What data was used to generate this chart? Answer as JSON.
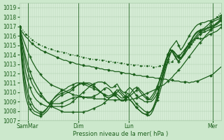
{
  "title": "",
  "xlabel": "Pression niveau de la mer( hPa )",
  "ylabel": "",
  "bg_color": "#cce8cc",
  "plot_bg_color": "#d8eed8",
  "grid_color": "#aaccaa",
  "grid_color_major": "#88aa88",
  "line_color": "#1a5e1a",
  "ylim": [
    1007,
    1019.5
  ],
  "xlim": [
    0,
    96
  ],
  "x_ticks_pos": [
    4,
    28,
    52,
    92
  ],
  "x_tick_labels": [
    "SamMar",
    "Dim",
    "Lun",
    "Mer"
  ],
  "vlines": [
    4,
    28,
    52,
    92
  ],
  "series": [
    {
      "style": "-",
      "marker": "D",
      "ms": 1.5,
      "lw": 0.9,
      "markevery": 6,
      "y": [
        1017.0,
        1016.5,
        1016.2,
        1015.9,
        1015.7,
        1015.4,
        1015.2,
        1015.0,
        1014.8,
        1014.7,
        1014.5,
        1014.4,
        1014.3,
        1014.2,
        1014.1,
        1014.0,
        1013.9,
        1013.8,
        1013.7,
        1013.6,
        1013.5,
        1013.4,
        1013.4,
        1013.3,
        1013.2,
        1013.2,
        1013.1,
        1013.0,
        1013.0,
        1012.9,
        1012.9,
        1012.8,
        1012.8,
        1012.8,
        1012.7,
        1012.7,
        1012.6,
        1012.6,
        1012.5,
        1012.5,
        1012.4,
        1012.4,
        1012.4,
        1012.3,
        1012.3,
        1012.2,
        1012.2,
        1012.2,
        1012.1,
        1012.1,
        1012.0,
        1012.0,
        1012.0,
        1011.9,
        1011.9,
        1011.8,
        1011.8,
        1011.8,
        1011.7,
        1011.7,
        1011.7,
        1011.6,
        1011.6,
        1011.6,
        1011.5,
        1011.5,
        1011.5,
        1011.4,
        1011.4,
        1011.4,
        1011.3,
        1011.3,
        1011.3,
        1011.2,
        1011.2,
        1011.2,
        1011.1,
        1011.1,
        1011.1,
        1011.1,
        1011.0,
        1011.1,
        1011.1,
        1011.2,
        1011.2,
        1011.3,
        1011.4,
        1011.5,
        1011.6,
        1011.7,
        1011.8,
        1011.9,
        1012.1,
        1012.3,
        1012.5,
        1012.7
      ]
    },
    {
      "style": "-",
      "marker": "+",
      "ms": 2.5,
      "lw": 0.9,
      "markevery": 5,
      "y": [
        1017.0,
        1016.2,
        1015.5,
        1014.9,
        1014.3,
        1013.8,
        1013.3,
        1012.9,
        1012.5,
        1012.2,
        1011.9,
        1011.6,
        1011.4,
        1011.2,
        1011.0,
        1010.8,
        1010.7,
        1010.6,
        1010.5,
        1010.4,
        1010.3,
        1010.2,
        1010.1,
        1010.0,
        1009.9,
        1009.8,
        1009.7,
        1009.7,
        1009.6,
        1009.6,
        1009.5,
        1009.5,
        1009.4,
        1009.4,
        1009.4,
        1009.4,
        1009.3,
        1009.3,
        1009.3,
        1009.3,
        1009.3,
        1009.2,
        1009.2,
        1009.2,
        1009.2,
        1009.2,
        1009.2,
        1009.2,
        1009.2,
        1009.2,
        1009.2,
        1009.2,
        1009.2,
        1009.3,
        1009.3,
        1009.4,
        1009.5,
        1009.6,
        1009.7,
        1009.8,
        1009.9,
        1010.0,
        1010.1,
        1010.2,
        1010.3,
        1010.4,
        1010.6,
        1010.7,
        1010.8,
        1011.0,
        1011.2,
        1011.4,
        1011.6,
        1011.9,
        1012.1,
        1012.4,
        1012.6,
        1012.9,
        1013.2,
        1013.5,
        1013.8,
        1014.1,
        1014.4,
        1014.7,
        1015.0,
        1015.3,
        1015.5,
        1015.8,
        1016.1,
        1016.3,
        1016.6,
        1016.8,
        1017.1,
        1017.3,
        1017.6,
        1017.9
      ]
    },
    {
      "style": "-",
      "marker": "+",
      "ms": 2.5,
      "lw": 0.9,
      "markevery": 5,
      "y": [
        1017.0,
        1015.8,
        1014.7,
        1013.7,
        1012.9,
        1012.2,
        1011.6,
        1011.1,
        1010.7,
        1010.3,
        1009.9,
        1009.6,
        1009.3,
        1009.0,
        1008.8,
        1008.6,
        1008.4,
        1008.3,
        1008.2,
        1008.1,
        1008.0,
        1007.9,
        1007.9,
        1007.9,
        1007.9,
        1007.9,
        1007.9,
        1007.9,
        1007.9,
        1007.9,
        1007.9,
        1008.0,
        1008.0,
        1008.1,
        1008.2,
        1008.3,
        1008.4,
        1008.5,
        1008.6,
        1008.7,
        1008.9,
        1009.1,
        1009.3,
        1009.5,
        1009.7,
        1010.0,
        1010.3,
        1010.0,
        1009.8,
        1009.5,
        1009.5,
        1009.6,
        1009.8,
        1010.1,
        1010.4,
        1010.5,
        1010.3,
        1010.0,
        1009.7,
        1009.5,
        1009.3,
        1009.2,
        1009.5,
        1009.8,
        1010.2,
        1010.7,
        1011.3,
        1012.0,
        1012.7,
        1013.4,
        1014.0,
        1014.6,
        1014.9,
        1015.2,
        1015.5,
        1015.0,
        1014.5,
        1014.8,
        1015.2,
        1015.6,
        1016.0,
        1016.4,
        1016.7,
        1017.0,
        1017.2,
        1017.3,
        1017.4,
        1017.4,
        1017.5,
        1017.6,
        1017.6,
        1017.7,
        1017.8,
        1017.9,
        1018.0,
        1018.2
      ]
    },
    {
      "style": "-",
      "marker": "+",
      "ms": 2.5,
      "lw": 0.9,
      "markevery": 5,
      "y": [
        1017.0,
        1015.5,
        1014.2,
        1013.1,
        1012.2,
        1011.5,
        1010.9,
        1010.5,
        1010.1,
        1009.8,
        1009.6,
        1009.4,
        1009.2,
        1009.0,
        1008.9,
        1008.8,
        1008.8,
        1008.8,
        1008.8,
        1008.8,
        1008.9,
        1009.0,
        1009.1,
        1009.2,
        1009.3,
        1009.4,
        1009.5,
        1009.5,
        1009.5,
        1009.5,
        1009.5,
        1009.5,
        1009.5,
        1009.5,
        1009.5,
        1009.6,
        1009.7,
        1009.8,
        1010.0,
        1010.2,
        1010.4,
        1010.5,
        1010.4,
        1010.2,
        1009.9,
        1009.8,
        1010.0,
        1010.3,
        1010.0,
        1009.8,
        1009.5,
        1009.5,
        1009.6,
        1009.8,
        1010.0,
        1010.2,
        1010.5,
        1010.2,
        1010.0,
        1009.7,
        1009.5,
        1009.3,
        1009.2,
        1009.5,
        1009.9,
        1010.5,
        1011.2,
        1012.0,
        1012.8,
        1013.5,
        1014.1,
        1014.5,
        1014.3,
        1014.0,
        1013.8,
        1013.8,
        1014.0,
        1014.3,
        1014.6,
        1014.9,
        1015.2,
        1015.4,
        1015.6,
        1015.7,
        1015.7,
        1015.7,
        1015.7,
        1015.8,
        1015.9,
        1016.1,
        1016.2,
        1016.3,
        1016.4,
        1016.5,
        1016.7,
        1016.9
      ]
    },
    {
      "style": "-",
      "marker": "+",
      "ms": 2.5,
      "lw": 0.9,
      "markevery": 5,
      "y": [
        1017.0,
        1015.0,
        1013.4,
        1012.1,
        1011.2,
        1010.5,
        1009.9,
        1009.5,
        1009.2,
        1009.0,
        1008.8,
        1008.7,
        1008.6,
        1008.5,
        1008.5,
        1008.5,
        1008.5,
        1008.5,
        1008.5,
        1008.5,
        1008.5,
        1008.5,
        1008.6,
        1008.7,
        1008.8,
        1009.0,
        1009.2,
        1009.4,
        1009.6,
        1009.8,
        1010.0,
        1010.2,
        1010.4,
        1010.6,
        1010.8,
        1010.9,
        1011.0,
        1011.1,
        1011.1,
        1011.1,
        1011.0,
        1010.9,
        1010.7,
        1010.5,
        1010.5,
        1010.7,
        1010.9,
        1010.5,
        1010.2,
        1010.0,
        1010.0,
        1010.3,
        1010.5,
        1010.3,
        1010.0,
        1009.7,
        1009.5,
        1009.3,
        1009.2,
        1009.0,
        1009.0,
        1009.0,
        1009.0,
        1009.2,
        1009.5,
        1009.9,
        1010.5,
        1011.2,
        1012.0,
        1012.8,
        1013.5,
        1014.2,
        1014.5,
        1014.2,
        1014.0,
        1013.8,
        1013.7,
        1013.9,
        1014.2,
        1014.5,
        1014.8,
        1015.1,
        1015.4,
        1015.7,
        1016.0,
        1016.2,
        1016.3,
        1016.4,
        1016.5,
        1016.6,
        1016.7,
        1016.8,
        1016.9,
        1017.0,
        1017.1,
        1017.2
      ]
    },
    {
      "style": "-",
      "marker": "+",
      "ms": 2.5,
      "lw": 0.9,
      "markevery": 5,
      "y": [
        1017.0,
        1014.5,
        1012.5,
        1011.0,
        1010.0,
        1009.3,
        1008.8,
        1008.4,
        1008.2,
        1008.0,
        1007.9,
        1007.9,
        1008.1,
        1008.3,
        1008.6,
        1009.0,
        1009.3,
        1009.6,
        1009.8,
        1010.0,
        1010.2,
        1010.3,
        1010.4,
        1010.6,
        1010.7,
        1010.8,
        1010.9,
        1011.0,
        1011.0,
        1011.0,
        1010.9,
        1010.8,
        1010.7,
        1010.6,
        1010.5,
        1010.4,
        1010.3,
        1010.2,
        1010.0,
        1009.9,
        1009.8,
        1009.7,
        1009.6,
        1009.7,
        1009.8,
        1010.0,
        1009.8,
        1009.6,
        1009.4,
        1009.4,
        1009.6,
        1009.9,
        1009.7,
        1009.4,
        1009.1,
        1008.8,
        1008.6,
        1008.4,
        1008.2,
        1008.0,
        1007.9,
        1007.9,
        1008.0,
        1008.3,
        1008.7,
        1009.2,
        1009.9,
        1010.7,
        1011.6,
        1012.5,
        1013.3,
        1014.0,
        1014.5,
        1014.3,
        1014.0,
        1013.7,
        1013.5,
        1013.8,
        1014.1,
        1014.5,
        1014.9,
        1015.3,
        1015.6,
        1015.9,
        1016.2,
        1016.4,
        1016.5,
        1016.6,
        1016.7,
        1016.8,
        1016.9,
        1017.0,
        1017.1,
        1017.2,
        1017.4,
        1017.6
      ]
    },
    {
      "style": "-",
      "marker": "+",
      "ms": 2.5,
      "lw": 0.9,
      "markevery": 5,
      "y": [
        1017.0,
        1014.0,
        1011.8,
        1010.3,
        1009.3,
        1008.7,
        1008.3,
        1008.0,
        1007.9,
        1007.8,
        1007.7,
        1007.8,
        1008.0,
        1008.3,
        1008.6,
        1009.0,
        1009.3,
        1009.5,
        1009.7,
        1009.8,
        1009.9,
        1010.0,
        1010.1,
        1010.2,
        1010.3,
        1010.5,
        1010.6,
        1010.7,
        1010.8,
        1010.9,
        1010.9,
        1010.9,
        1010.9,
        1010.8,
        1010.7,
        1010.6,
        1010.5,
        1010.3,
        1010.1,
        1009.9,
        1009.7,
        1009.5,
        1009.4,
        1009.5,
        1009.6,
        1009.8,
        1009.5,
        1009.3,
        1009.1,
        1009.1,
        1009.3,
        1009.5,
        1009.2,
        1009.0,
        1008.7,
        1008.4,
        1008.2,
        1008.0,
        1007.8,
        1007.7,
        1007.7,
        1007.8,
        1008.0,
        1008.4,
        1009.0,
        1009.7,
        1010.6,
        1011.5,
        1012.4,
        1013.2,
        1014.0,
        1014.5,
        1014.3,
        1013.9,
        1013.5,
        1013.3,
        1013.6,
        1014.0,
        1014.4,
        1014.8,
        1015.2,
        1015.5,
        1015.9,
        1016.2,
        1016.4,
        1016.5,
        1016.6,
        1016.7,
        1016.8,
        1016.9,
        1017.0,
        1017.1,
        1017.2,
        1017.4,
        1017.5,
        1017.7
      ]
    },
    {
      "style": "-",
      "marker": "+",
      "ms": 2.5,
      "lw": 0.9,
      "markevery": 5,
      "y": [
        1017.0,
        1013.5,
        1011.0,
        1009.5,
        1008.7,
        1008.2,
        1007.9,
        1007.7,
        1007.6,
        1007.5,
        1007.5,
        1007.6,
        1007.8,
        1008.0,
        1008.3,
        1008.6,
        1009.0,
        1009.2,
        1009.4,
        1009.6,
        1009.7,
        1009.8,
        1009.9,
        1010.0,
        1010.1,
        1010.3,
        1010.5,
        1010.7,
        1010.9,
        1011.0,
        1011.0,
        1011.0,
        1011.0,
        1011.0,
        1010.9,
        1010.7,
        1010.5,
        1010.3,
        1010.1,
        1009.9,
        1009.7,
        1009.5,
        1009.4,
        1009.5,
        1009.6,
        1009.7,
        1009.5,
        1009.3,
        1009.1,
        1009.1,
        1009.3,
        1009.5,
        1009.2,
        1009.0,
        1008.7,
        1008.4,
        1008.2,
        1008.0,
        1007.8,
        1007.7,
        1007.6,
        1007.5,
        1007.7,
        1008.1,
        1008.7,
        1009.5,
        1010.4,
        1011.4,
        1012.3,
        1013.2,
        1014.0,
        1014.6,
        1014.4,
        1014.0,
        1013.6,
        1013.3,
        1013.6,
        1014.0,
        1014.4,
        1014.8,
        1015.2,
        1015.6,
        1016.0,
        1016.3,
        1016.5,
        1016.6,
        1016.7,
        1016.8,
        1017.0,
        1017.2,
        1017.4,
        1017.5,
        1017.6,
        1017.7,
        1017.8,
        1018.0
      ]
    },
    {
      "style": ":",
      "marker": ".",
      "ms": 2.0,
      "lw": 0.9,
      "markevery": 3,
      "y": [
        1017.0,
        1016.8,
        1016.5,
        1016.2,
        1016.0,
        1015.8,
        1015.6,
        1015.4,
        1015.3,
        1015.1,
        1015.0,
        1014.9,
        1014.8,
        1014.7,
        1014.6,
        1014.6,
        1014.5,
        1014.4,
        1014.4,
        1014.3,
        1014.3,
        1014.2,
        1014.2,
        1014.1,
        1014.0,
        1014.0,
        1013.9,
        1013.9,
        1013.8,
        1013.8,
        1013.7,
        1013.7,
        1013.6,
        1013.6,
        1013.5,
        1013.5,
        1013.5,
        1013.5,
        1013.4,
        1013.4,
        1013.4,
        1013.3,
        1013.3,
        1013.3,
        1013.2,
        1013.2,
        1013.2,
        1013.1,
        1013.1,
        1013.1,
        1013.0,
        1013.0,
        1013.0,
        1012.9,
        1012.9,
        1012.9,
        1012.9,
        1012.8,
        1012.8,
        1012.8,
        1012.8,
        1012.8,
        1012.8,
        1012.7,
        1012.7,
        1012.7,
        1012.8,
        1012.8,
        1012.9,
        1013.0,
        1013.0,
        1013.1,
        1013.3,
        1013.5,
        1013.7,
        1013.9,
        1014.1,
        1014.3,
        1014.5,
        1014.7,
        1014.9,
        1015.1,
        1015.3,
        1015.6,
        1015.8,
        1016.0,
        1016.3,
        1016.5,
        1016.7,
        1017.0,
        1017.2,
        1017.5,
        1017.7,
        1018.0,
        1018.2,
        1018.5
      ]
    }
  ]
}
